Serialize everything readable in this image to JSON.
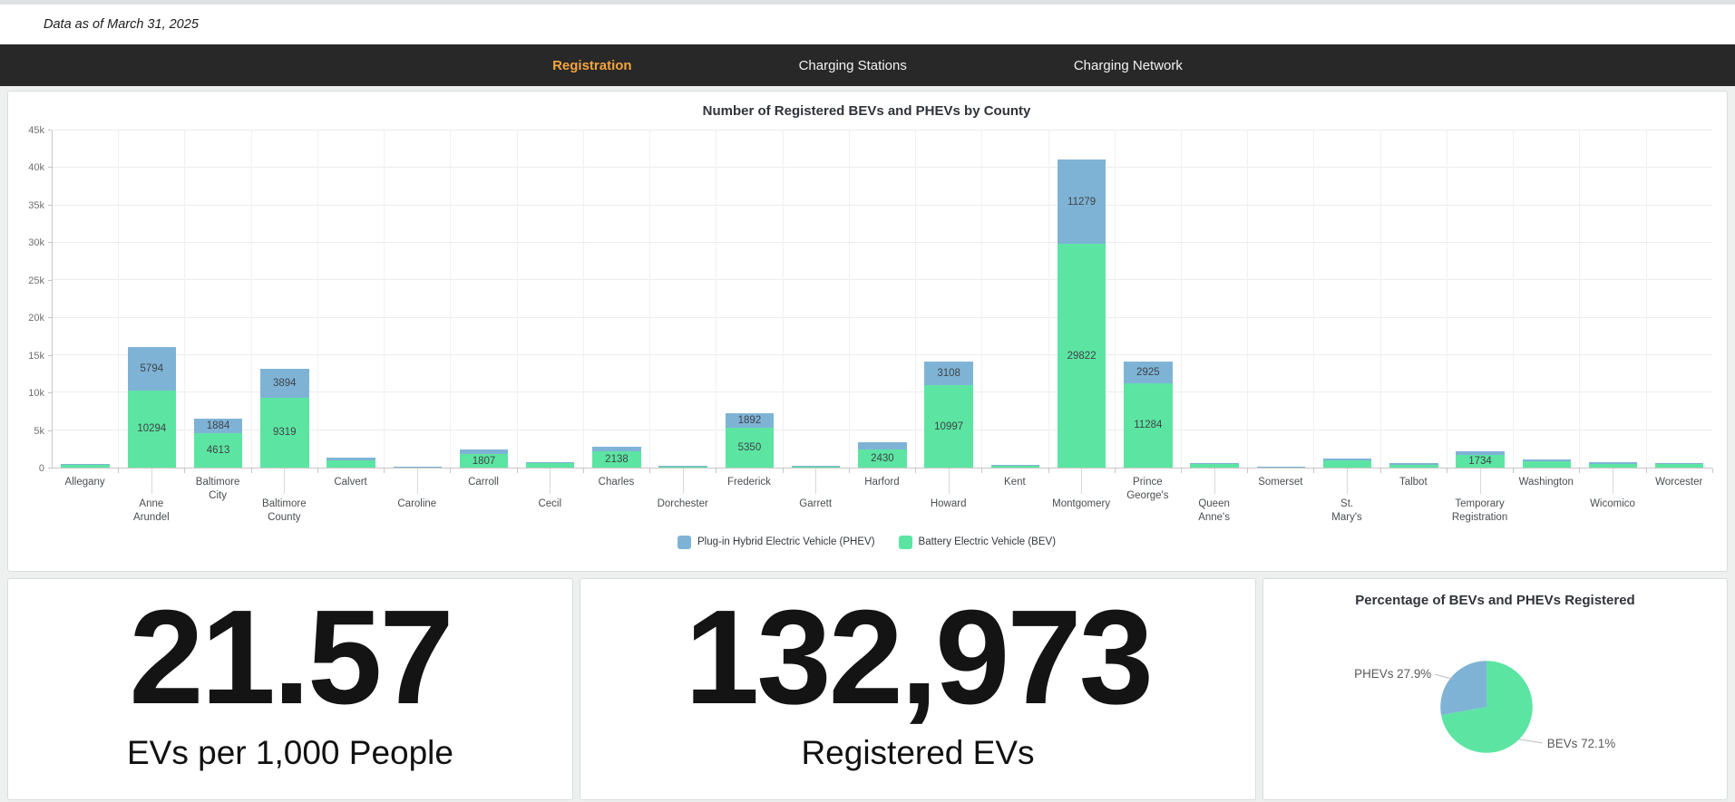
{
  "header": {
    "data_as_of": "Data as of March 31, 2025"
  },
  "nav": {
    "tabs": [
      {
        "label": "Registration",
        "active": true
      },
      {
        "label": "Charging Stations",
        "active": false
      },
      {
        "label": "Charging Network",
        "active": false
      }
    ]
  },
  "colors": {
    "phev": "#7fb3d6",
    "bev": "#5ce5a2",
    "accent_active_tab": "#f2a43d",
    "nav_bg": "#282828"
  },
  "stats": [
    {
      "value": "21.57",
      "label": "EVs per 1,000 People"
    },
    {
      "value": "132,973",
      "label": "Registered EVs"
    }
  ],
  "chart_data": [
    {
      "type": "bar",
      "stacked": true,
      "title": "Number of Registered BEVs and PHEVs by County",
      "categories": [
        "Allegany",
        "Anne Arundel",
        "Baltimore City",
        "Baltimore County",
        "Calvert",
        "Caroline",
        "Carroll",
        "Cecil",
        "Charles",
        "Dorchester",
        "Frederick",
        "Garrett",
        "Harford",
        "Howard",
        "Kent",
        "Montgomery",
        "Prince George's",
        "Queen Anne's",
        "Somerset",
        "St. Mary's",
        "Talbot",
        "Temporary Registration",
        "Washington",
        "Wicomico",
        "Worcester"
      ],
      "series": [
        {
          "name": "Plug-in Hybrid Electric Vehicle (PHEV)",
          "key": "phev",
          "values": [
            110,
            5794,
            1884,
            3894,
            280,
            60,
            620,
            160,
            640,
            70,
            1892,
            60,
            930,
            3108,
            80,
            11279,
            2925,
            160,
            40,
            280,
            150,
            450,
            260,
            170,
            160
          ]
        },
        {
          "name": "Battery Electric Vehicle (BEV)",
          "key": "bev",
          "values": [
            330,
            10294,
            4613,
            9319,
            1000,
            120,
            1807,
            550,
            2138,
            180,
            5350,
            150,
            2430,
            10997,
            240,
            29822,
            11284,
            500,
            100,
            950,
            400,
            1734,
            850,
            500,
            500
          ]
        }
      ],
      "stack_order": [
        "bev",
        "phev"
      ],
      "labeled_values_note": "only segments >= label_min show value labels",
      "label_min": 1700,
      "ylim": [
        0,
        45000
      ],
      "yticks": [
        {
          "label": "0",
          "value": 0
        },
        {
          "label": "5k",
          "value": 5000
        },
        {
          "label": "10k",
          "value": 10000
        },
        {
          "label": "15k",
          "value": 15000
        },
        {
          "label": "20k",
          "value": 20000
        },
        {
          "label": "25k",
          "value": 25000
        },
        {
          "label": "30k",
          "value": 30000
        },
        {
          "label": "35k",
          "value": 35000
        },
        {
          "label": "40k",
          "value": 40000
        },
        {
          "label": "45k",
          "value": 45000
        }
      ],
      "grid": true,
      "legend_position": "bottom"
    },
    {
      "type": "pie",
      "title": "Percentage of BEVs and PHEVs Registered",
      "slices": [
        {
          "key": "bev",
          "label": "BEVs 72.1%",
          "value": 72.1
        },
        {
          "key": "phev",
          "label": "PHEVs 27.9%",
          "value": 27.9
        }
      ]
    }
  ]
}
